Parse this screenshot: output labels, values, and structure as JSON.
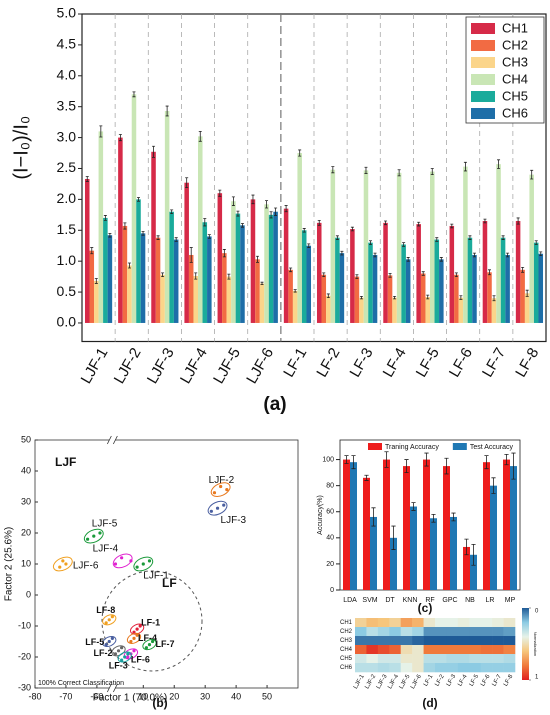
{
  "chart_data": [
    {
      "type": "bar",
      "panel": "(a)",
      "ylabel": "(I−I₀)/I₀",
      "categories": [
        "LJF-1",
        "LJF-2",
        "LJF-3",
        "LJF-4",
        "LJF-5",
        "LJF-6",
        "LF-1",
        "LF-2",
        "LF-3",
        "LF-4",
        "LF-5",
        "LF-6",
        "LF-7",
        "LF-8"
      ],
      "series": [
        {
          "name": "CH1",
          "color": "#d62a48",
          "values": [
            2.33,
            3.0,
            2.77,
            2.27,
            2.1,
            2.0,
            1.85,
            1.62,
            1.52,
            1.62,
            1.6,
            1.57,
            1.65,
            1.65
          ],
          "errors": [
            0.04,
            0.05,
            0.09,
            0.08,
            0.05,
            0.07,
            0.05,
            0.04,
            0.03,
            0.03,
            0.03,
            0.03,
            0.03,
            0.05
          ]
        },
        {
          "name": "CH2",
          "color": "#f26b43",
          "values": [
            1.17,
            1.57,
            1.38,
            1.1,
            1.13,
            1.03,
            0.86,
            0.78,
            0.75,
            0.77,
            0.8,
            0.78,
            0.82,
            0.86
          ],
          "errors": [
            0.05,
            0.05,
            0.03,
            0.12,
            0.06,
            0.05,
            0.03,
            0.03,
            0.03,
            0.03,
            0.03,
            0.03,
            0.04,
            0.04
          ]
        },
        {
          "name": "CH3",
          "color": "#fbd58a",
          "values": [
            0.68,
            0.93,
            0.78,
            0.76,
            0.75,
            0.64,
            0.52,
            0.44,
            0.41,
            0.41,
            0.42,
            0.41,
            0.4,
            0.48
          ],
          "errors": [
            0.04,
            0.04,
            0.03,
            0.05,
            0.04,
            0.02,
            0.02,
            0.03,
            0.02,
            0.02,
            0.03,
            0.03,
            0.04,
            0.05
          ]
        },
        {
          "name": "CH4",
          "color": "#c9e6b5",
          "values": [
            3.1,
            3.7,
            3.43,
            3.02,
            1.97,
            1.92,
            2.75,
            2.48,
            2.47,
            2.43,
            2.45,
            2.53,
            2.57,
            2.4
          ],
          "errors": [
            0.09,
            0.04,
            0.08,
            0.08,
            0.07,
            0.06,
            0.05,
            0.05,
            0.05,
            0.05,
            0.05,
            0.07,
            0.07,
            0.07
          ]
        },
        {
          "name": "CH5",
          "color": "#1aab9b",
          "values": [
            1.7,
            2.0,
            1.8,
            1.63,
            1.77,
            1.75,
            1.5,
            1.38,
            1.3,
            1.27,
            1.35,
            1.38,
            1.38,
            1.3
          ],
          "errors": [
            0.04,
            0.03,
            0.03,
            0.06,
            0.04,
            0.05,
            0.03,
            0.03,
            0.03,
            0.03,
            0.03,
            0.03,
            0.03,
            0.03
          ]
        },
        {
          "name": "CH6",
          "color": "#1e6ea8",
          "values": [
            1.42,
            1.45,
            1.35,
            1.4,
            1.58,
            1.8,
            1.25,
            1.13,
            1.1,
            1.03,
            1.03,
            1.1,
            1.1,
            1.12
          ],
          "errors": [
            0.03,
            0.03,
            0.03,
            0.03,
            0.03,
            0.06,
            0.03,
            0.03,
            0.03,
            0.03,
            0.03,
            0.03,
            0.03,
            0.03
          ]
        }
      ],
      "ylim": [
        -0.3,
        5.0
      ],
      "yticks": [
        {
          "value": 0,
          "label": "0.0"
        },
        {
          "value": 0.5,
          "label": "0.5"
        },
        {
          "value": 1,
          "label": "1.0"
        },
        {
          "value": 1.5,
          "label": "1.5"
        },
        {
          "value": 2,
          "label": "2.0"
        },
        {
          "value": 2.5,
          "label": "2.5"
        },
        {
          "value": 3,
          "label": "3.0"
        },
        {
          "value": 3.5,
          "label": "3.5"
        },
        {
          "value": 4,
          "label": "4.0"
        },
        {
          "value": 4.5,
          "label": "4.5"
        },
        {
          "value": 5,
          "label": "5.0"
        }
      ],
      "legend": "upper right",
      "separators": true
    },
    {
      "type": "scatter",
      "panel": "(b)",
      "xlabel": "Factor 1 (70.0%)",
      "ylabel": "Factor 2 (25.6%)",
      "xlim": [
        -80,
        60
      ],
      "xbreak": [
        -55,
        0
      ],
      "xticks": [
        -80,
        -70,
        -60,
        10,
        20,
        30,
        40,
        50
      ],
      "ylim": [
        -30,
        50
      ],
      "yticks": [
        -30,
        -20,
        -10,
        0,
        10,
        20,
        30,
        40,
        50
      ],
      "annotations": [
        "LJF",
        "LF",
        "100% Correct Classification"
      ],
      "series": [
        {
          "name": "LJF-2",
          "color": "#e8781e",
          "x": [
            33,
            35,
            37
          ],
          "y": [
            33,
            35,
            34
          ]
        },
        {
          "name": "LJF-3",
          "color": "#4a5fa0",
          "x": [
            32,
            34,
            36
          ],
          "y": [
            27,
            28,
            29
          ]
        },
        {
          "name": "LJF-4",
          "color": "#e020d0",
          "x": [
            1,
            3,
            6
          ],
          "y": [
            10,
            12,
            11
          ]
        },
        {
          "name": "LJF-1",
          "color": "#1a9a3a",
          "x": [
            8,
            10,
            12
          ],
          "y": [
            9,
            10,
            11
          ]
        },
        {
          "name": "LJF-5",
          "color": "#1a9a3a",
          "x": [
            -63,
            -61,
            -59
          ],
          "y": [
            18,
            19,
            20
          ]
        },
        {
          "name": "LJF-6",
          "color": "#f0a020",
          "x": [
            -72,
            -71,
            -70
          ],
          "y": [
            9,
            11,
            10
          ]
        },
        {
          "name": "LF-8",
          "color": "#f0a020",
          "x": [
            -2,
            -1,
            0
          ],
          "y": [
            -9,
            -8,
            -7
          ]
        },
        {
          "name": "LF-1",
          "color": "#e0203a",
          "x": [
            7,
            8,
            9
          ],
          "y": [
            -12,
            -11,
            -10
          ]
        },
        {
          "name": "LF-4",
          "color": "#e8781e",
          "x": [
            6,
            7,
            8
          ],
          "y": [
            -15,
            -14,
            -13
          ]
        },
        {
          "name": "LF-7",
          "color": "#1a9a3a",
          "x": [
            11,
            12,
            13
          ],
          "y": [
            -17,
            -16,
            -15
          ]
        },
        {
          "name": "LF-5",
          "color": "#4a5fa0",
          "x": [
            -2,
            -1,
            0
          ],
          "y": [
            -16,
            -15,
            -14
          ]
        },
        {
          "name": "LF-2",
          "color": "#666666",
          "x": [
            1,
            2,
            3
          ],
          "y": [
            -19,
            -18,
            -17
          ]
        },
        {
          "name": "LF-6",
          "color": "#e020d0",
          "x": [
            5,
            6,
            7
          ],
          "y": [
            -20,
            -19,
            -18
          ]
        },
        {
          "name": "LF-3",
          "color": "#18a0a0",
          "x": [
            3,
            4,
            5
          ],
          "y": [
            -21,
            -20,
            -19
          ]
        }
      ]
    },
    {
      "type": "bar",
      "panel": "(c)",
      "ylabel": "Accuracy(%)",
      "categories": [
        "LDA",
        "SVM",
        "DT",
        "KNN",
        "RF",
        "GPC",
        "NB",
        "LR",
        "MP"
      ],
      "series": [
        {
          "name": "Traning Accuracy",
          "color": "#ee1c1c",
          "values": [
            100,
            86,
            100,
            95,
            100,
            95,
            33,
            98,
            100
          ],
          "errors": [
            3,
            2,
            6,
            5,
            5,
            6,
            6,
            5,
            4
          ]
        },
        {
          "name": "Test Accuracy",
          "color": "#1f78b4",
          "values": [
            98,
            56,
            40,
            64,
            55,
            56,
            27,
            80,
            95
          ],
          "errors": [
            5,
            7,
            9,
            3,
            3,
            3,
            8,
            6,
            10
          ]
        }
      ],
      "ylim": [
        0,
        115
      ],
      "yticks": [
        0,
        20,
        40,
        60,
        80,
        100
      ],
      "legend": "top",
      "separators": false
    },
    {
      "type": "heatmap",
      "panel": "(d)",
      "colorbar_label": "Normalization",
      "rows": [
        "CH1",
        "CH2",
        "CH3",
        "CH4",
        "CH5",
        "CH6"
      ],
      "columns": [
        "LJF-1",
        "LJF-2",
        "LJF-3",
        "LJF-4",
        "LJF-5",
        "LJF-6",
        "LF-1",
        "LF-2",
        "LF-3",
        "LF-4",
        "LF-5",
        "LF-6",
        "LF-7",
        "LF-8"
      ],
      "values": [
        [
          0.55,
          0.62,
          0.6,
          0.55,
          0.7,
          0.65,
          0.45,
          0.4,
          0.4,
          0.42,
          0.4,
          0.4,
          0.42,
          0.45
        ],
        [
          0.2,
          0.3,
          0.25,
          0.2,
          0.3,
          0.25,
          0.1,
          0.1,
          0.1,
          0.1,
          0.1,
          0.1,
          0.1,
          0.12
        ],
        [
          0.05,
          0.05,
          0.05,
          0.05,
          0.05,
          0.02,
          0,
          0,
          0,
          0,
          0,
          0,
          0,
          0
        ],
        [
          0.85,
          0.95,
          0.9,
          0.85,
          0.5,
          0.45,
          0.8,
          0.8,
          0.8,
          0.8,
          0.8,
          0.82,
          0.82,
          0.78
        ],
        [
          0.35,
          0.4,
          0.35,
          0.35,
          0.45,
          0.45,
          0.3,
          0.3,
          0.28,
          0.28,
          0.3,
          0.3,
          0.3,
          0.28
        ],
        [
          0.3,
          0.3,
          0.28,
          0.3,
          0.4,
          0.45,
          0.25,
          0.22,
          0.22,
          0.2,
          0.2,
          0.22,
          0.22,
          0.22
        ]
      ],
      "colormap": [
        "#1f5a96",
        "#8ccbe3",
        "#e6f2e8",
        "#f6c67c",
        "#f07a3c",
        "#e01f1f"
      ],
      "colorbar_ticks": [
        0,
        1
      ]
    }
  ]
}
